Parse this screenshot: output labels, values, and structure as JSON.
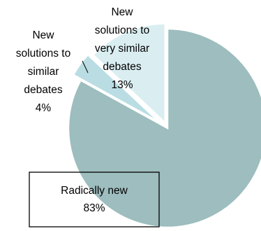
{
  "chart_data": {
    "type": "pie",
    "categories": [
      "Radically new",
      "New solutions to similar debates",
      "New solutions to very similar debates"
    ],
    "values": [
      83,
      4,
      13
    ],
    "unit": "%",
    "colors": [
      "#9dbdbe",
      "#b9dde3",
      "#daeef1"
    ],
    "labels": {
      "radically_new": {
        "lines": [
          "Radically new",
          "83%"
        ]
      },
      "similar": {
        "lines": [
          "New",
          "solutions to",
          "similar",
          "debates",
          "4%"
        ]
      },
      "very_similar": {
        "lines": [
          "New",
          "solutions to",
          "very similar",
          "debates",
          "13%"
        ]
      }
    },
    "legend": "none",
    "grid": false
  }
}
